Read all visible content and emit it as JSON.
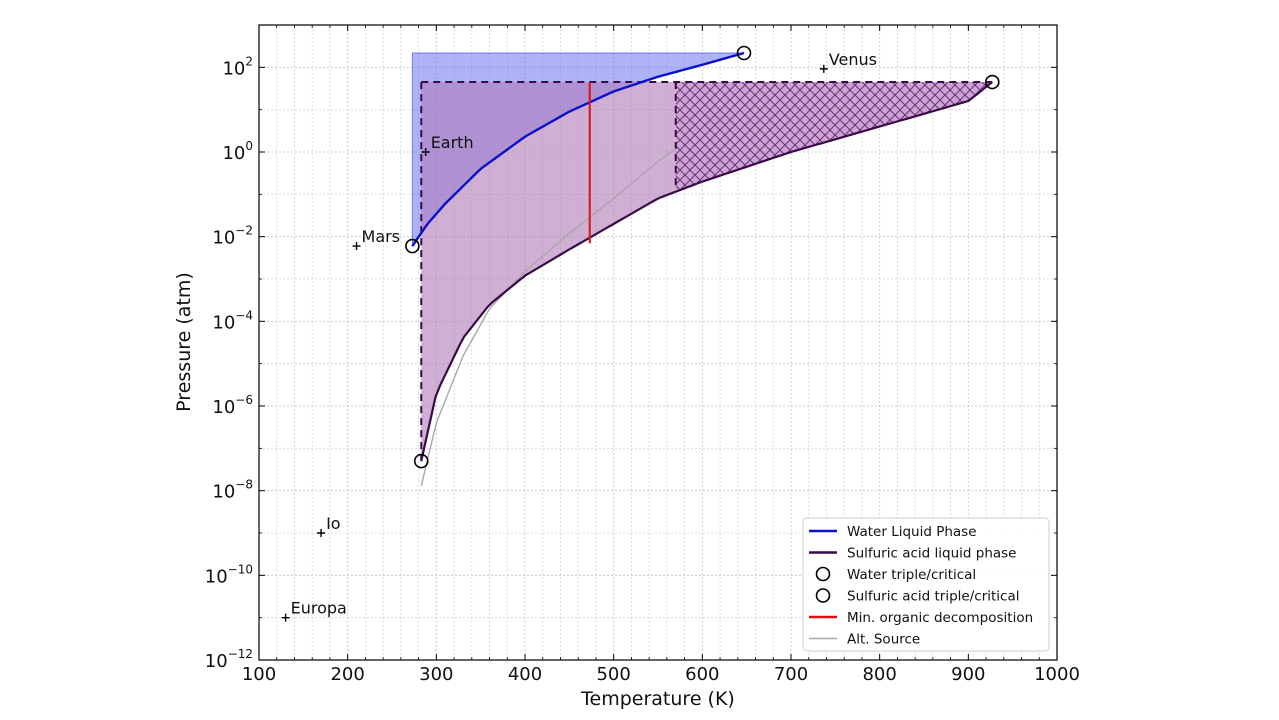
{
  "chart_data": {
    "type": "line",
    "xlabel": "Temperature (K)",
    "ylabel": "Pressure (atm)",
    "x_scale": "linear",
    "y_scale": "log",
    "xlim": [
      100,
      1000
    ],
    "ylim": [
      1e-12,
      1000
    ],
    "grid": true,
    "legend_placement": "bottom-right",
    "x_ticks": [
      100,
      200,
      300,
      400,
      500,
      600,
      700,
      800,
      900,
      1000
    ],
    "x_tick_labels": [
      "100",
      "200",
      "300",
      "400",
      "500",
      "600",
      "700",
      "800",
      "900",
      "1000"
    ],
    "y_ticks": [
      1e-12,
      1e-10,
      1e-08,
      1e-06,
      0.0001,
      0.01,
      1,
      100
    ],
    "y_tick_labels": [
      {
        "base": "10",
        "exp": "−12"
      },
      {
        "base": "10",
        "exp": "−10"
      },
      {
        "base": "10",
        "exp": "−8"
      },
      {
        "base": "10",
        "exp": "−6"
      },
      {
        "base": "10",
        "exp": "−4"
      },
      {
        "base": "10",
        "exp": "−2"
      },
      {
        "base": "10",
        "exp": "0"
      },
      {
        "base": "10",
        "exp": "2"
      }
    ],
    "series": [
      {
        "name": "Water Liquid Phase",
        "color": "#0a10cc",
        "x": [
          273,
          290,
          310,
          350,
          400,
          450,
          500,
          550,
          600,
          647
        ],
        "y": [
          0.006,
          0.02,
          0.06,
          0.4,
          2.3,
          9,
          27,
          60,
          115,
          218
        ]
      },
      {
        "name": "Sulfuric acid liquid phase",
        "color": "#3a0a4a",
        "x": [
          283,
          300,
          330,
          360,
          400,
          450,
          500,
          550,
          600,
          700,
          800,
          900,
          927
        ],
        "y": [
          5e-08,
          2e-06,
          4e-05,
          0.00025,
          0.0012,
          0.005,
          0.02,
          0.08,
          0.2,
          1,
          4,
          16,
          45
        ]
      },
      {
        "name": "Min. organic decomposition",
        "color": "#dd1111",
        "x": [
          473,
          473
        ],
        "y": [
          0.007,
          45
        ]
      },
      {
        "name": "Alt. Source",
        "color": "#a8a8a8",
        "x": [
          283,
          300,
          330,
          360,
          400,
          450,
          500,
          550,
          570
        ],
        "y": [
          1.3e-08,
          4e-07,
          1.5e-05,
          0.0002,
          0.0015,
          0.012,
          0.08,
          0.6,
          1.2
        ]
      }
    ],
    "markers": [
      {
        "name": "Water triple/critical",
        "x": [
          273,
          647
        ],
        "y": [
          0.006,
          218
        ]
      },
      {
        "name": "Sulfuric acid triple/critical",
        "x": [
          283,
          927
        ],
        "y": [
          5e-08,
          45
        ]
      }
    ],
    "regions": {
      "water_fill": {
        "color": "#6b74f2",
        "x_left": 273,
        "x_right": 647,
        "y_top": 218
      },
      "sulfuric_fill": {
        "color": "#b07ab8",
        "x_left": 283,
        "y_top": 45,
        "x_hatch_start": 570,
        "hatch_bottom_y": 0.13
      }
    },
    "planets": [
      {
        "name": "Venus",
        "x": 737,
        "y": 92
      },
      {
        "name": "Earth",
        "x": 288,
        "y": 1
      },
      {
        "name": "Mars",
        "x": 210,
        "y": 0.006
      },
      {
        "name": "Io",
        "x": 170,
        "y": 1e-09
      },
      {
        "name": "Europa",
        "x": 130,
        "y": 1e-11
      }
    ],
    "legend": [
      {
        "label": "Water Liquid Phase",
        "kind": "line",
        "color": "#0a10cc"
      },
      {
        "label": "Sulfuric acid liquid phase",
        "kind": "line",
        "color": "#3a0a4a"
      },
      {
        "label": "Water triple/critical",
        "kind": "circle",
        "color": "#000000"
      },
      {
        "label": "Sulfuric acid triple/critical",
        "kind": "circle",
        "color": "#000000"
      },
      {
        "label": "Min. organic decomposition",
        "kind": "line",
        "color": "#dd1111"
      },
      {
        "label": "Alt. Source",
        "kind": "line",
        "color": "#a8a8a8"
      }
    ]
  }
}
